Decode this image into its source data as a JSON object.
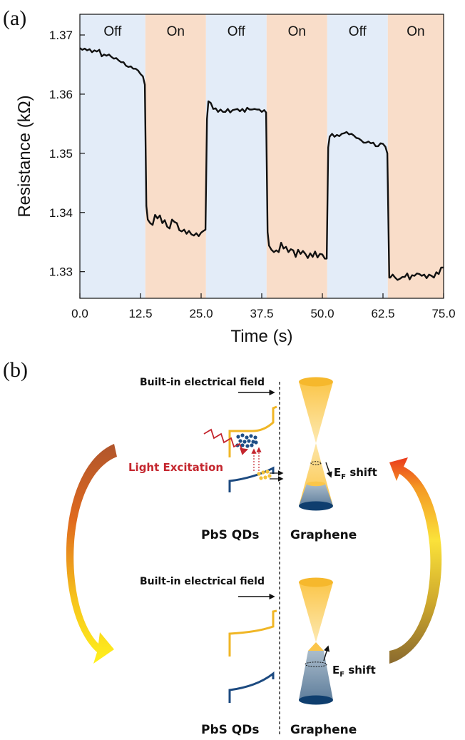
{
  "panel_a": {
    "label": "(a)"
  },
  "panel_b": {
    "label": "(b)",
    "top": {
      "field_label": "Built-in electrical field",
      "light_label": "Light Excitation",
      "ef_main": "E",
      "ef_sub": "F",
      "ef_suffix": " shift",
      "qd_label": "PbS QDs",
      "graphene_label": "Graphene"
    },
    "bottom": {
      "field_label": "Built-in electrical field",
      "ef_main": "E",
      "ef_sub": "F",
      "ef_suffix": " shift",
      "qd_label": "PbS QDs",
      "graphene_label": "Graphene"
    }
  },
  "chart_data": {
    "type": "line",
    "xlabel": "Time (s)",
    "ylabel": "Resistance (kΩ)",
    "xlim": [
      0,
      75
    ],
    "ylim": [
      1.3255,
      1.3735
    ],
    "xticks": [
      0.0,
      12.5,
      25.0,
      37.5,
      50.0,
      62.5,
      75.0
    ],
    "xtick_labels": [
      "0.0",
      "12.5",
      "25.0",
      "37.5",
      "50.0",
      "62.5",
      "75.0"
    ],
    "yticks": [
      1.33,
      1.34,
      1.35,
      1.36,
      1.37
    ],
    "ytick_labels": [
      "1.33",
      "1.34",
      "1.35",
      "1.36",
      "1.37"
    ],
    "grid": false,
    "line_color": "#111111",
    "regions": [
      {
        "label": "Off",
        "start": 0.0,
        "end": 13.5,
        "color": "#e3ecf8"
      },
      {
        "label": "On",
        "start": 13.5,
        "end": 26.0,
        "color": "#f9ddc9"
      },
      {
        "label": "Off",
        "start": 26.0,
        "end": 38.5,
        "color": "#e3ecf8"
      },
      {
        "label": "On",
        "start": 38.5,
        "end": 51.0,
        "color": "#f9ddc9"
      },
      {
        "label": "Off",
        "start": 51.0,
        "end": 63.5,
        "color": "#e3ecf8"
      },
      {
        "label": "On",
        "start": 63.5,
        "end": 75.0,
        "color": "#f9ddc9"
      }
    ],
    "series": [
      {
        "x": [
          0.0,
          0.5,
          1.0,
          1.5,
          2.0,
          2.5,
          3.0,
          3.5,
          4.0,
          4.5,
          5.0,
          5.5,
          6.0,
          6.5,
          7.0,
          7.5,
          8.0,
          8.5,
          9.0,
          9.5,
          10.0,
          10.5,
          11.0,
          11.5,
          12.0,
          12.5,
          13.0,
          13.4,
          13.7,
          14.0,
          14.5,
          15.0,
          15.5,
          16.0,
          16.5,
          17.0,
          17.5,
          18.0,
          18.5,
          19.0,
          19.5,
          20.0,
          20.5,
          21.0,
          21.5,
          22.0,
          22.5,
          23.0,
          23.5,
          24.0,
          24.5,
          25.0,
          25.5,
          25.9,
          26.2,
          26.5,
          27.0,
          27.5,
          28.0,
          28.5,
          29.0,
          29.5,
          30.0,
          30.5,
          31.0,
          31.5,
          32.0,
          32.5,
          33.0,
          33.5,
          34.0,
          34.5,
          35.0,
          35.5,
          36.0,
          36.5,
          37.0,
          37.5,
          38.0,
          38.4,
          38.7,
          39.0,
          39.5,
          40.0,
          40.5,
          41.0,
          41.5,
          42.0,
          42.5,
          43.0,
          43.5,
          44.0,
          44.5,
          45.0,
          45.5,
          46.0,
          46.5,
          47.0,
          47.5,
          48.0,
          48.5,
          49.0,
          49.5,
          50.0,
          50.5,
          50.9,
          51.2,
          51.5,
          52.0,
          52.5,
          53.0,
          53.5,
          54.0,
          54.5,
          55.0,
          55.5,
          56.0,
          56.5,
          57.0,
          57.5,
          58.0,
          58.5,
          59.0,
          59.5,
          60.0,
          60.5,
          61.0,
          61.5,
          62.0,
          62.5,
          63.0,
          63.4,
          63.8,
          64.0,
          64.5,
          65.0,
          65.5,
          66.0,
          66.5,
          67.0,
          67.5,
          68.0,
          68.5,
          69.0,
          69.5,
          70.0,
          70.5,
          71.0,
          71.5,
          72.0,
          72.5,
          73.0,
          73.5,
          74.0,
          74.5,
          75.0
        ],
        "y": [
          1.3678,
          1.3675,
          1.3677,
          1.3674,
          1.3676,
          1.3671,
          1.3674,
          1.3672,
          1.3675,
          1.3664,
          1.3667,
          1.3665,
          1.3667,
          1.3663,
          1.366,
          1.3661,
          1.3657,
          1.3654,
          1.3654,
          1.3648,
          1.3646,
          1.3647,
          1.3643,
          1.3643,
          1.364,
          1.3634,
          1.363,
          1.3616,
          1.3411,
          1.3388,
          1.3382,
          1.3379,
          1.3396,
          1.339,
          1.3395,
          1.3382,
          1.3387,
          1.3376,
          1.3373,
          1.3388,
          1.3384,
          1.3382,
          1.337,
          1.3368,
          1.3371,
          1.3364,
          1.3369,
          1.3363,
          1.3361,
          1.3365,
          1.336,
          1.3366,
          1.3369,
          1.3371,
          1.3558,
          1.3588,
          1.3585,
          1.3575,
          1.3576,
          1.357,
          1.3574,
          1.357,
          1.357,
          1.3575,
          1.3569,
          1.3573,
          1.3574,
          1.3575,
          1.3571,
          1.3575,
          1.357,
          1.3577,
          1.3574,
          1.3574,
          1.3575,
          1.3574,
          1.3574,
          1.357,
          1.3573,
          1.3569,
          1.3367,
          1.3344,
          1.3337,
          1.3333,
          1.3336,
          1.3333,
          1.3349,
          1.3339,
          1.3342,
          1.3333,
          1.3338,
          1.3336,
          1.3325,
          1.3337,
          1.333,
          1.3335,
          1.333,
          1.3323,
          1.3331,
          1.3325,
          1.3334,
          1.3324,
          1.333,
          1.3329,
          1.3322,
          1.3322,
          1.351,
          1.3528,
          1.3533,
          1.3528,
          1.3531,
          1.3529,
          1.3533,
          1.3534,
          1.3536,
          1.3532,
          1.3533,
          1.353,
          1.3526,
          1.3525,
          1.3522,
          1.3518,
          1.3518,
          1.352,
          1.3517,
          1.3518,
          1.3512,
          1.3512,
          1.3517,
          1.3516,
          1.3511,
          1.35,
          1.329,
          1.329,
          1.3295,
          1.329,
          1.3286,
          1.3288,
          1.3291,
          1.3291,
          1.3297,
          1.3287,
          1.3294,
          1.3293,
          1.3297,
          1.3296,
          1.3293,
          1.3295,
          1.3289,
          1.3295,
          1.3293,
          1.329,
          1.3299,
          1.3296,
          1.3307,
          1.3307
        ]
      }
    ]
  }
}
